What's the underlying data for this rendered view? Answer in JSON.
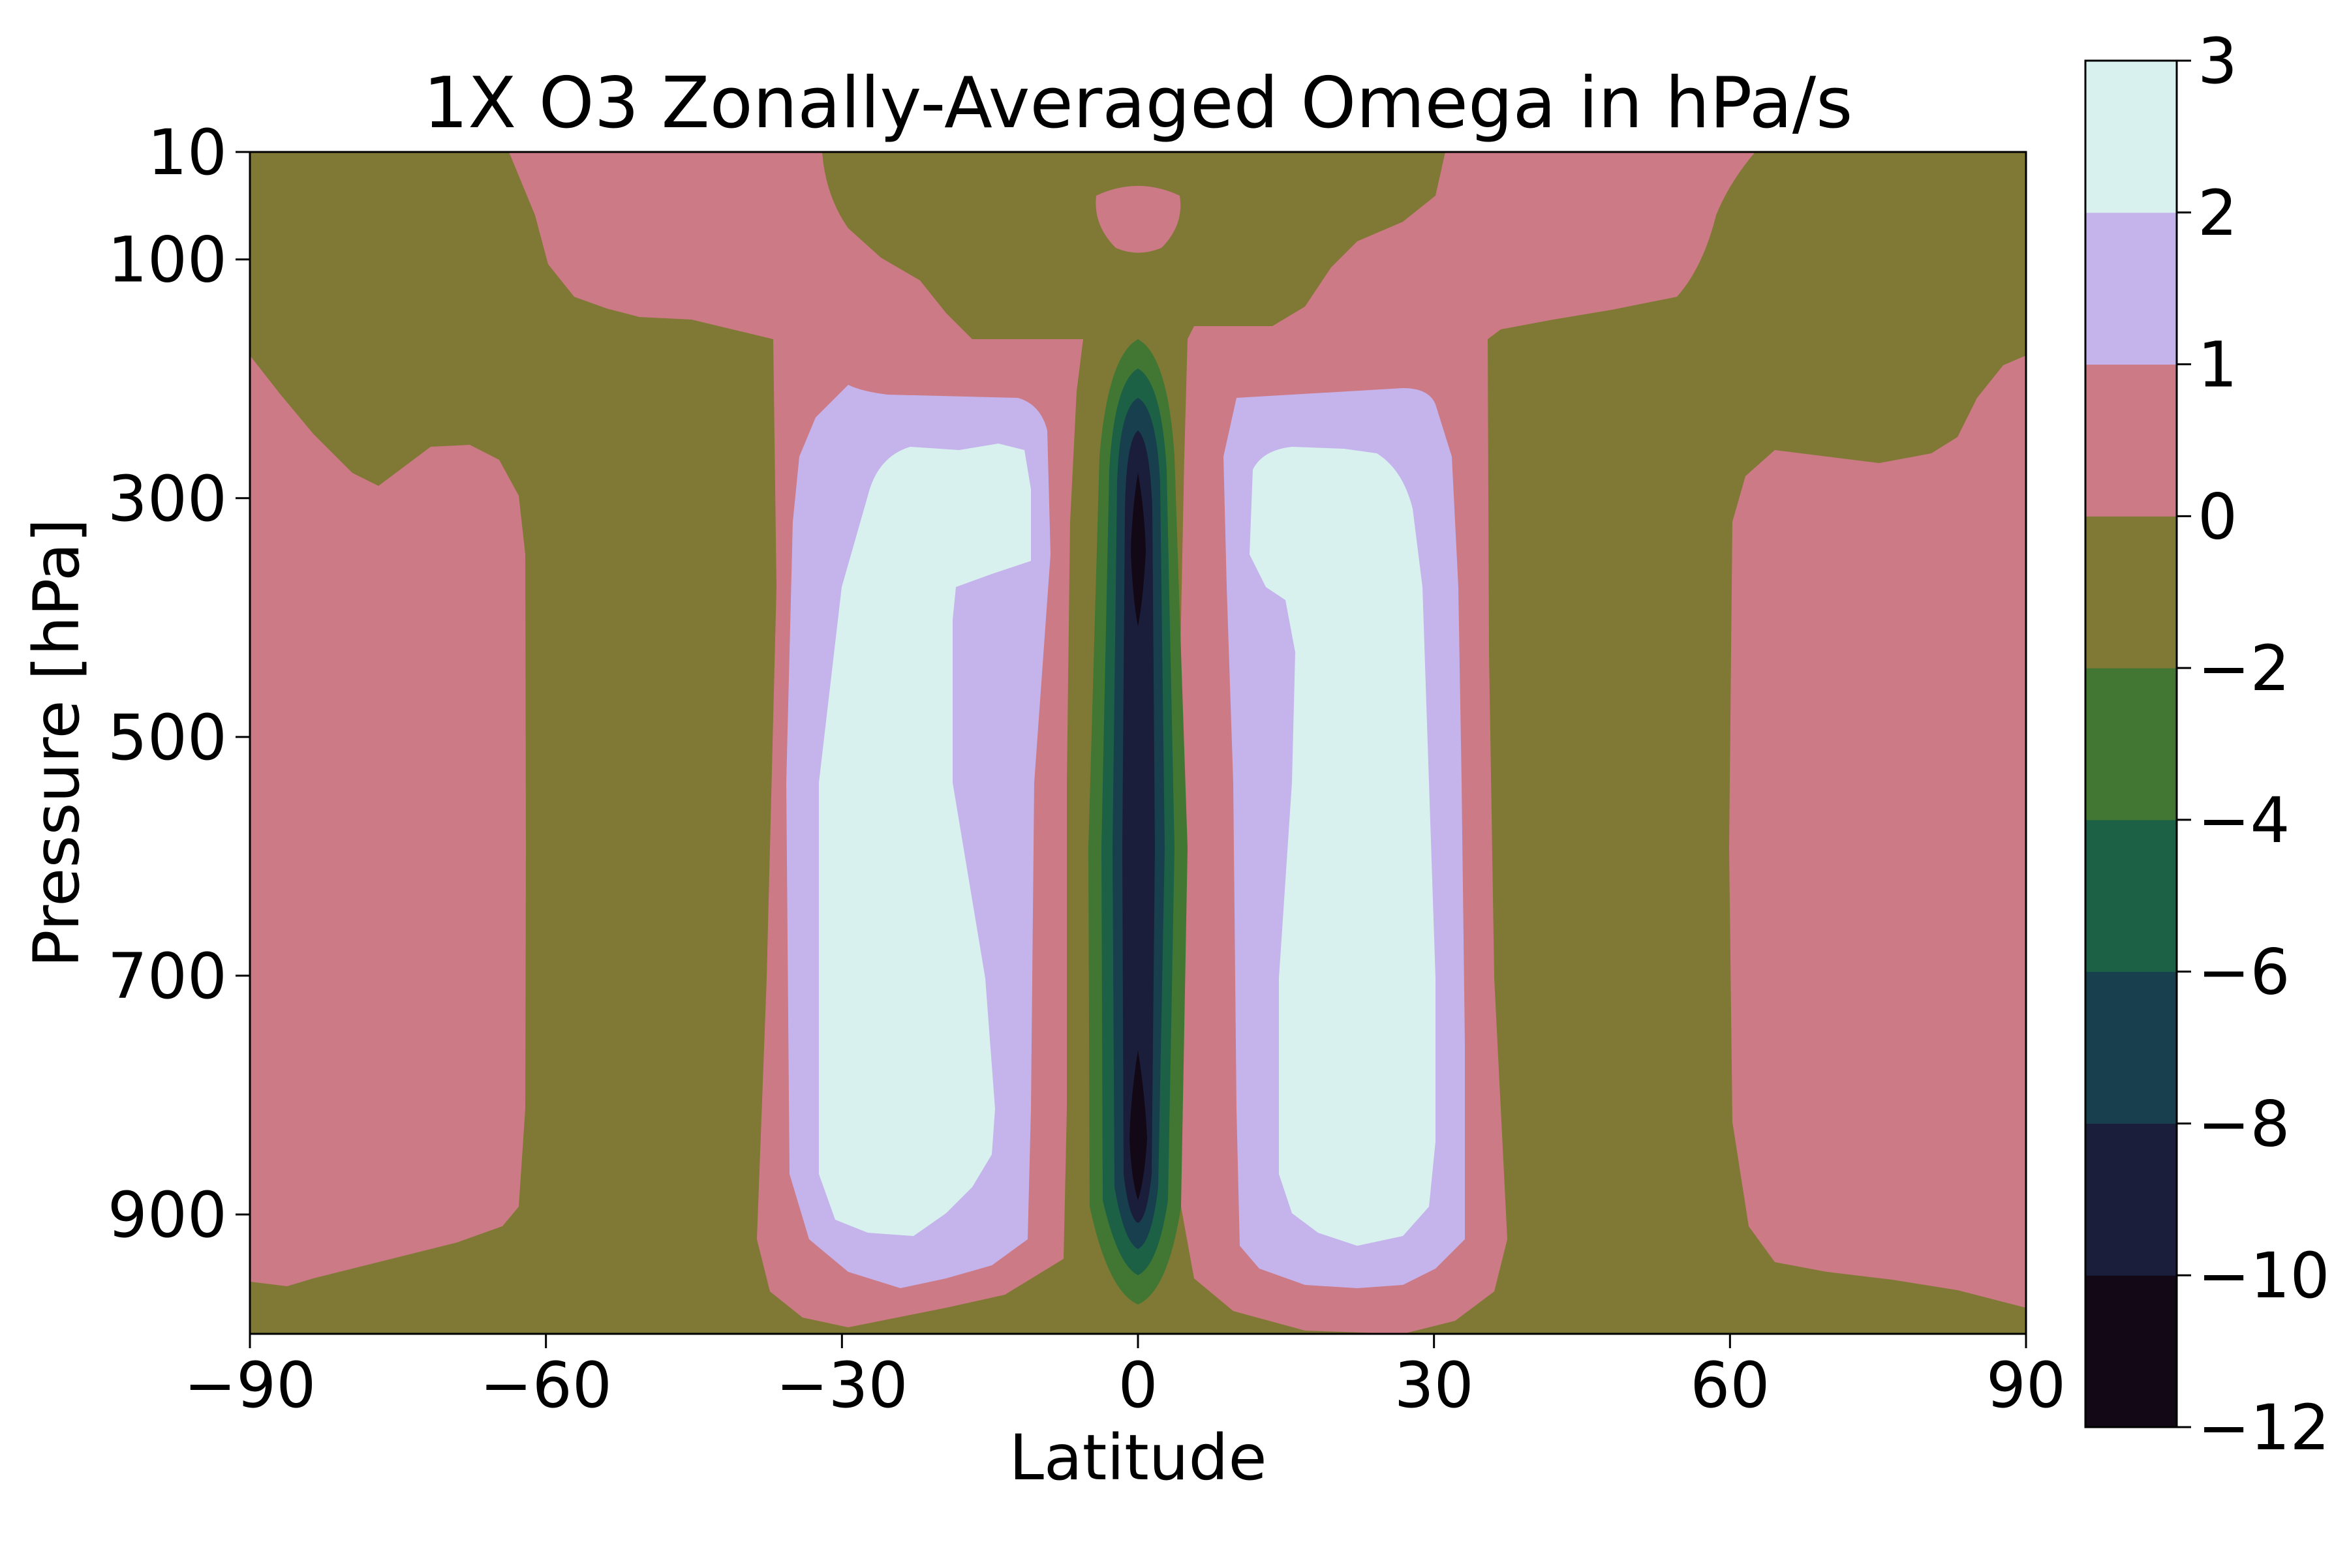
{
  "chart_data": {
    "type": "heatmap",
    "subtype": "filled-contour",
    "title": "1X O3 Zonally-Averaged Omega in hPa/s",
    "xlabel": "Latitude",
    "ylabel": "Pressure [hPa]",
    "xlim": [
      -90,
      90
    ],
    "ylim": [
      1000,
      10
    ],
    "y_inverted": true,
    "xticks": [
      -90,
      -60,
      -30,
      0,
      30,
      60,
      90
    ],
    "xtick_labels": [
      "−90",
      "−60",
      "−30",
      "0",
      "30",
      "60",
      "90"
    ],
    "yticks": [
      10,
      100,
      300,
      500,
      700,
      900
    ],
    "ytick_labels": [
      "10",
      "100",
      "300",
      "500",
      "700",
      "900"
    ],
    "colorbar": {
      "levels": [
        -12,
        -10,
        -8,
        -6,
        -4,
        -2,
        0,
        1,
        2,
        3
      ],
      "level_labels": [
        "−12",
        "−10",
        "−8",
        "−6",
        "−4",
        "−2",
        "0",
        "1",
        "2",
        "3"
      ],
      "colors": [
        "#120816",
        "#1b1e3a",
        "#183f4d",
        "#1c6145",
        "#417732",
        "#807936",
        "#cc7a85",
        "#c5b3ec",
        "#d8f1ee"
      ]
    },
    "features": [
      {
        "region": "deep tropical ascent",
        "lat": 0,
        "pressure_range": [
          150,
          1000
        ],
        "min_value": -12
      },
      {
        "region": "subtropical descent north",
        "lat_range": [
          12,
          30
        ],
        "pressure_range": [
          200,
          960
        ],
        "max_value": 3
      },
      {
        "region": "subtropical descent south",
        "lat_range": [
          -30,
          -12
        ],
        "pressure_range": [
          200,
          960
        ],
        "max_value": 3
      },
      {
        "region": "polar descent north",
        "lat_range": [
          60,
          90
        ],
        "pressure_range": [
          250,
          980
        ],
        "value_range": [
          0,
          1
        ]
      },
      {
        "region": "polar descent south",
        "lat_range": [
          -90,
          -60
        ],
        "pressure_range": [
          250,
          980
        ],
        "value_range": [
          0,
          1
        ]
      },
      {
        "region": "equatorial stratosphere",
        "lat": 0,
        "pressure_range": [
          40,
          80
        ],
        "value_range": [
          0,
          1
        ]
      }
    ]
  }
}
